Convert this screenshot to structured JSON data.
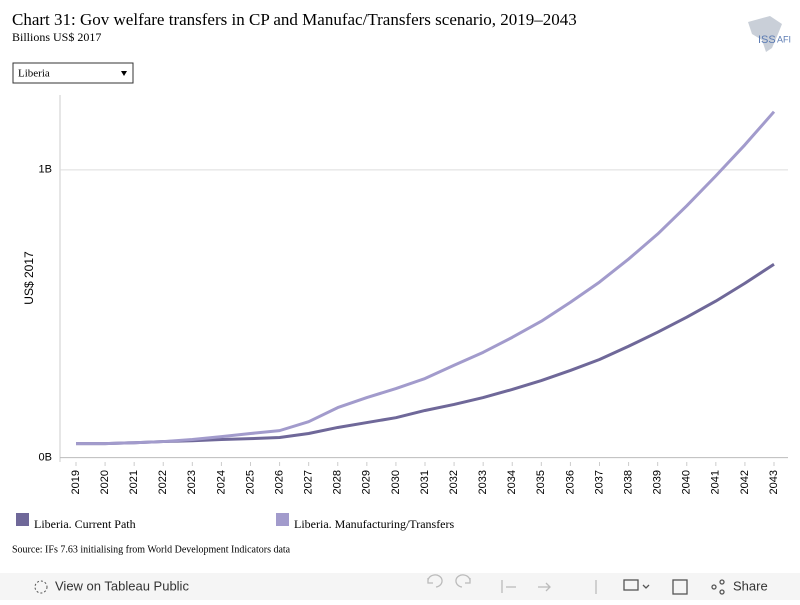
{
  "chart_data": {
    "type": "line",
    "title": "Chart 31: Gov welfare transfers in CP and Manufac/Transfers scenario, 2019–2043",
    "subtitle": "Billions US$ 2017",
    "y_label": "US$ 2017",
    "categories": [
      "2019",
      "2020",
      "2021",
      "2022",
      "2023",
      "2024",
      "2025",
      "2026",
      "2027",
      "2028",
      "2029",
      "2030",
      "2031",
      "2032",
      "2033",
      "2034",
      "2035",
      "2036",
      "2037",
      "2038",
      "2039",
      "2040",
      "2041",
      "2042",
      "2043"
    ],
    "series": [
      {
        "name": "Liberia. Current Path",
        "color": "#6f6899",
        "values": [
          0.049,
          0.049,
          0.052,
          0.056,
          0.059,
          0.063,
          0.066,
          0.07,
          0.084,
          0.105,
          0.122,
          0.139,
          0.164,
          0.185,
          0.209,
          0.237,
          0.268,
          0.303,
          0.341,
          0.387,
          0.436,
          0.488,
          0.544,
          0.606,
          0.672
        ]
      },
      {
        "name": "Liberia. Manufacturing/Transfers",
        "color": "#a29bcc",
        "values": [
          0.049,
          0.049,
          0.052,
          0.056,
          0.063,
          0.073,
          0.084,
          0.094,
          0.125,
          0.174,
          0.209,
          0.24,
          0.275,
          0.321,
          0.366,
          0.418,
          0.474,
          0.54,
          0.61,
          0.69,
          0.777,
          0.875,
          0.979,
          1.087,
          1.202
        ]
      }
    ],
    "ylim": [
      -0.015,
      1.26
    ],
    "yticks": [
      {
        "value": 0,
        "label": "0B"
      },
      {
        "value": 1,
        "label": "1B"
      }
    ],
    "grid": true
  },
  "dropdown": "Liberia",
  "source": "Source: IFs 7.63 initialising from World Development Indicators data",
  "logo": {
    "left": "ISS",
    "right": "AFI"
  },
  "toolbar": {
    "view": "View on Tableau Public",
    "share": "Share"
  }
}
